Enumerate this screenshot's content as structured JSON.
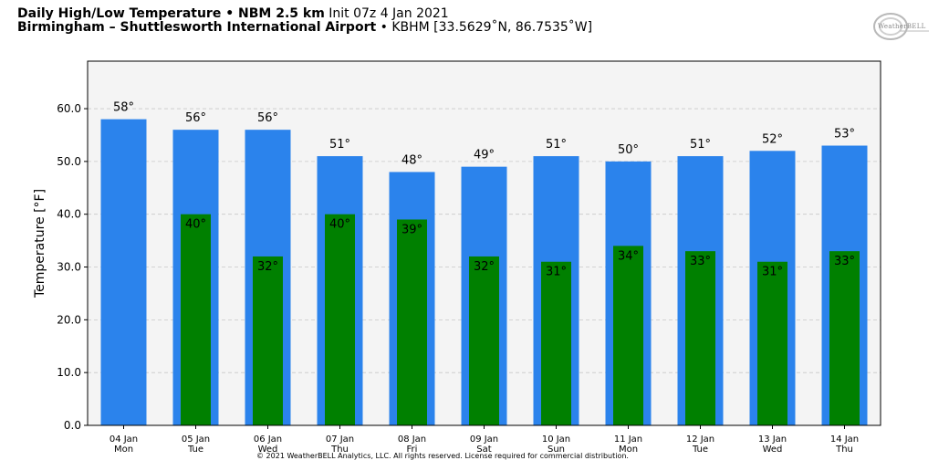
{
  "header": {
    "title_bold": "Daily High/Low Temperature • NBM 2.5 km",
    "init": "Init 07z 4 Jan 2021",
    "station_bold": "Birmingham – Shuttlesworth International Airport",
    "station_info": "• KBHM [33.5629˚N, 86.7535˚W]"
  },
  "logo": {
    "text": "WeatherBELL",
    "icon": "weatherbell-logo-icon"
  },
  "copyright": "© 2021 WeatherBELL Analytics, LLC. All rights reserved. License required for commercial distribution.",
  "colors": {
    "high": "#2b83ec",
    "low": "#008000",
    "plot_bg": "#f4f4f4"
  },
  "chart_data": {
    "type": "bar",
    "ylabel": "Temperature [°F]",
    "ylim": [
      0,
      69
    ],
    "yticks": [
      "0.0",
      "10.0",
      "20.0",
      "30.0",
      "40.0",
      "50.0",
      "60.0"
    ],
    "grid": true,
    "categories": [
      [
        "04 Jan",
        "Mon"
      ],
      [
        "05 Jan",
        "Tue"
      ],
      [
        "06 Jan",
        "Wed"
      ],
      [
        "07 Jan",
        "Thu"
      ],
      [
        "08 Jan",
        "Fri"
      ],
      [
        "09 Jan",
        "Sat"
      ],
      [
        "10 Jan",
        "Sun"
      ],
      [
        "11 Jan",
        "Mon"
      ],
      [
        "12 Jan",
        "Tue"
      ],
      [
        "13 Jan",
        "Wed"
      ],
      [
        "14 Jan",
        "Thu"
      ]
    ],
    "series": [
      {
        "values": [
          58,
          56,
          56,
          51,
          48,
          49,
          51,
          50,
          51,
          52,
          53
        ],
        "labels": [
          "58°",
          "56°",
          "56°",
          "51°",
          "48°",
          "49°",
          "51°",
          "50°",
          "51°",
          "52°",
          "53°"
        ]
      },
      {
        "values": [
          null,
          40,
          32,
          40,
          39,
          32,
          31,
          34,
          33,
          31,
          33
        ],
        "labels": [
          "",
          "40°",
          "32°",
          "40°",
          "39°",
          "32°",
          "31°",
          "34°",
          "33°",
          "31°",
          "33°"
        ]
      }
    ]
  }
}
